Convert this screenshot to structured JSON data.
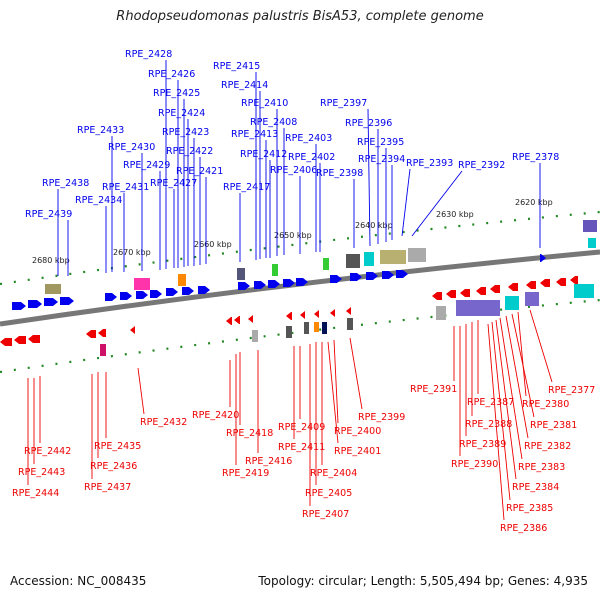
{
  "title": "Rhodopseudomonas palustris BisA53, complete genome",
  "footer": {
    "accession": "Accession: NC_008435",
    "topology": "Topology: circular; Length: 5,505,494 bp; Genes: 4,935"
  },
  "colors": {
    "plus": "#0000ee",
    "minus": "#ee0000",
    "backbone": "#777777",
    "ticks": "#228822"
  },
  "kbp_marks": [
    "2620 kbp",
    "2630 kbp",
    "2640 kbp",
    "2650 kbp",
    "2660 kbp",
    "2670 kbp",
    "2680 kbp"
  ],
  "top_genes": [
    "RPE_2378",
    "RPE_2392",
    "RPE_2393",
    "RPE_2394",
    "RPE_2395",
    "RPE_2396",
    "RPE_2397",
    "RPE_2398",
    "RPE_2402",
    "RPE_2403",
    "RPE_2406",
    "RPE_2408",
    "RPE_2410",
    "RPE_2412",
    "RPE_2413",
    "RPE_2414",
    "RPE_2415",
    "RPE_2417",
    "RPE_2421",
    "RPE_2422",
    "RPE_2423",
    "RPE_2424",
    "RPE_2425",
    "RPE_2426",
    "RPE_2427",
    "RPE_2428",
    "RPE_2429",
    "RPE_2430",
    "RPE_2431",
    "RPE_2433",
    "RPE_2434",
    "RPE_2438",
    "RPE_2439"
  ],
  "bottom_genes": [
    "RPE_2377",
    "RPE_2380",
    "RPE_2381",
    "RPE_2382",
    "RPE_2383",
    "RPE_2384",
    "RPE_2385",
    "RPE_2386",
    "RPE_2387",
    "RPE_2388",
    "RPE_2389",
    "RPE_2390",
    "RPE_2391",
    "RPE_2399",
    "RPE_2400",
    "RPE_2401",
    "RPE_2404",
    "RPE_2405",
    "RPE_2407",
    "RPE_2409",
    "RPE_2411",
    "RPE_2416",
    "RPE_2418",
    "RPE_2419",
    "RPE_2420",
    "RPE_2432",
    "RPE_2435",
    "RPE_2436",
    "RPE_2437",
    "RPE_2442",
    "RPE_2443",
    "RPE_2444"
  ]
}
